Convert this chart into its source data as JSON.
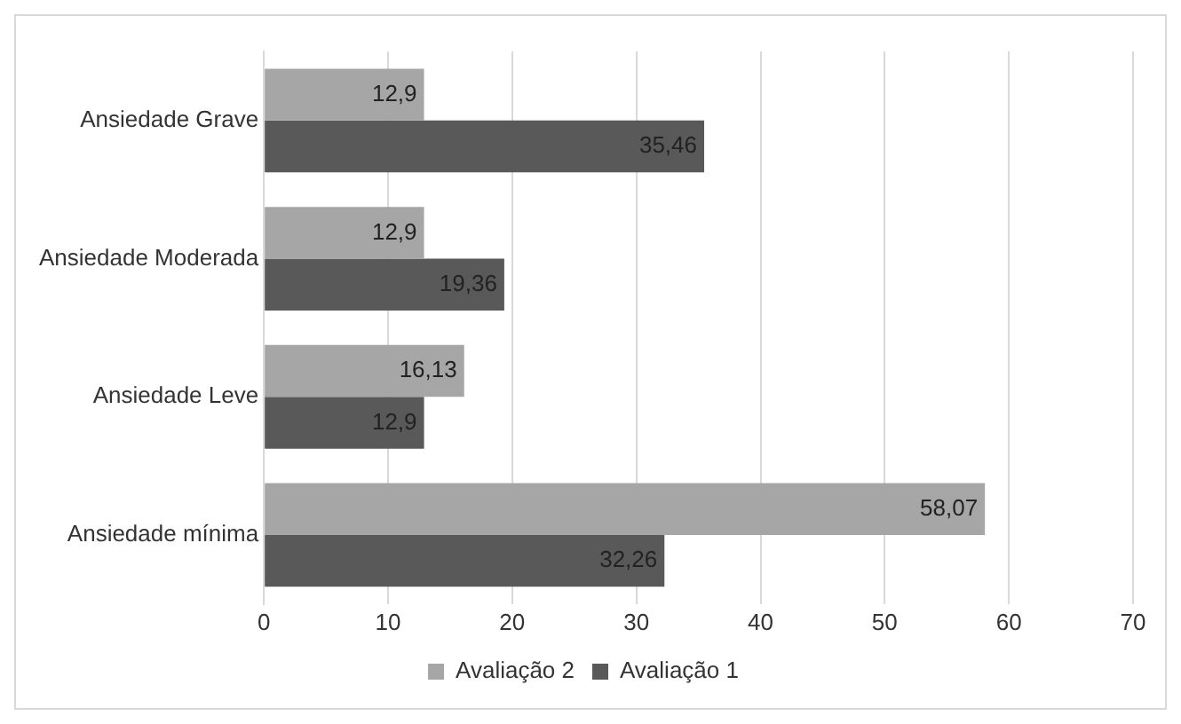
{
  "chart_data": {
    "type": "bar",
    "orientation": "horizontal",
    "categories": [
      "Ansiedade Grave",
      "Ansiedade Moderada",
      "Ansiedade Leve",
      "Ansiedade mínima"
    ],
    "series": [
      {
        "name": "Avaliação 2",
        "color": "#a6a6a6",
        "values": [
          12.9,
          12.9,
          16.13,
          58.07
        ],
        "value_labels": [
          "12,9",
          "12,9",
          "16,13",
          "58,07"
        ]
      },
      {
        "name": "Avaliação 1",
        "color": "#595959",
        "values": [
          35.46,
          19.36,
          12.9,
          32.26
        ],
        "value_labels": [
          "35,46",
          "19,36",
          "12,9",
          "32,26"
        ]
      }
    ],
    "xlim": [
      0,
      70
    ],
    "xticks": [
      0,
      10,
      20,
      30,
      40,
      50,
      60,
      70
    ],
    "grid": "x",
    "legend": "bottom"
  }
}
